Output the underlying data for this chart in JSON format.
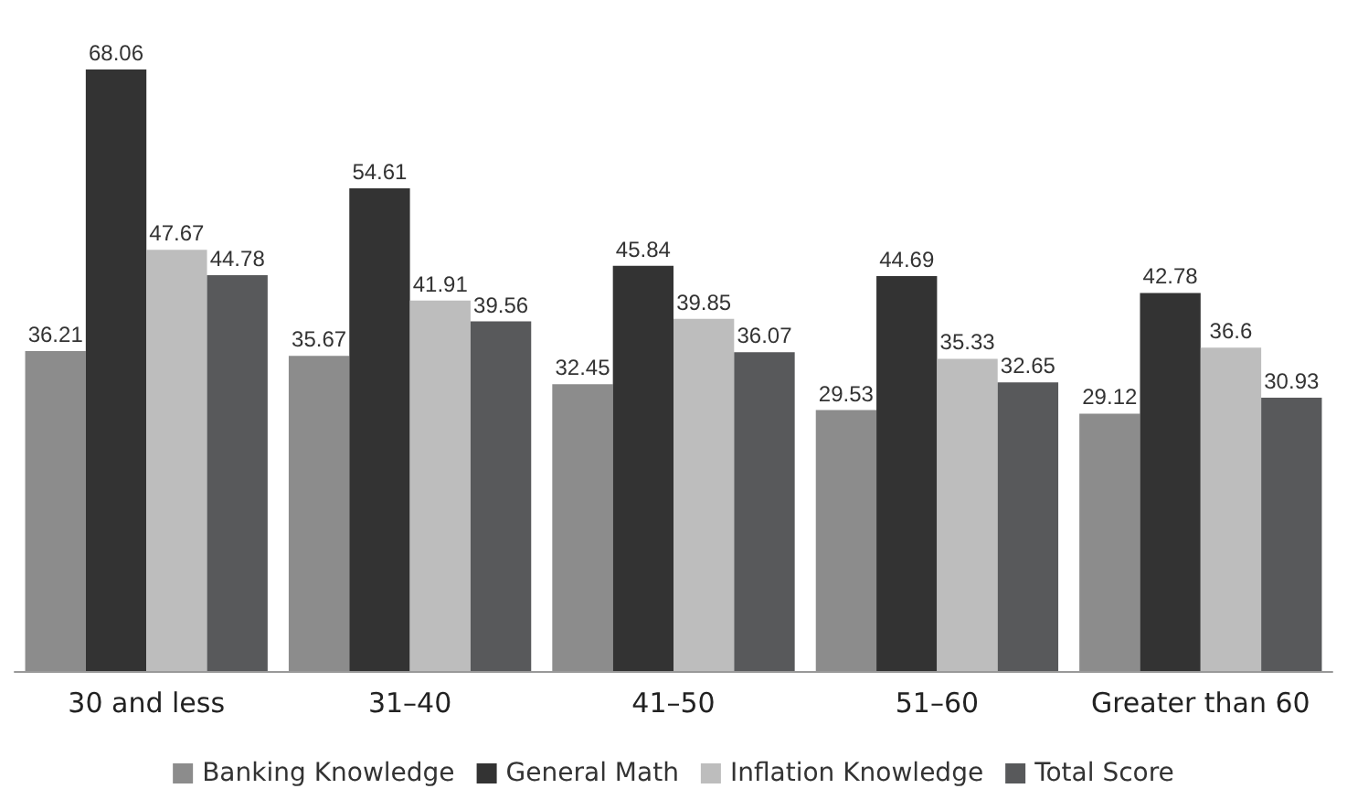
{
  "chart_data": {
    "type": "bar",
    "categories": [
      "30 and less",
      "31–40",
      "41–50",
      "51–60",
      "Greater than 60"
    ],
    "series": [
      {
        "name": "Banking Knowledge",
        "color": "#8c8c8c",
        "values": [
          36.21,
          35.67,
          32.45,
          29.53,
          29.12
        ]
      },
      {
        "name": "General Math",
        "color": "#333333",
        "values": [
          68.06,
          54.61,
          45.84,
          44.69,
          42.78
        ]
      },
      {
        "name": "Inflation Knowledge",
        "color": "#bdbdbd",
        "values": [
          47.67,
          41.91,
          39.85,
          35.33,
          36.6
        ]
      },
      {
        "name": "Total Score",
        "color": "#58595b",
        "values": [
          44.78,
          39.56,
          36.07,
          32.65,
          30.93
        ]
      }
    ],
    "data_labels": true,
    "legend": "bottom"
  }
}
